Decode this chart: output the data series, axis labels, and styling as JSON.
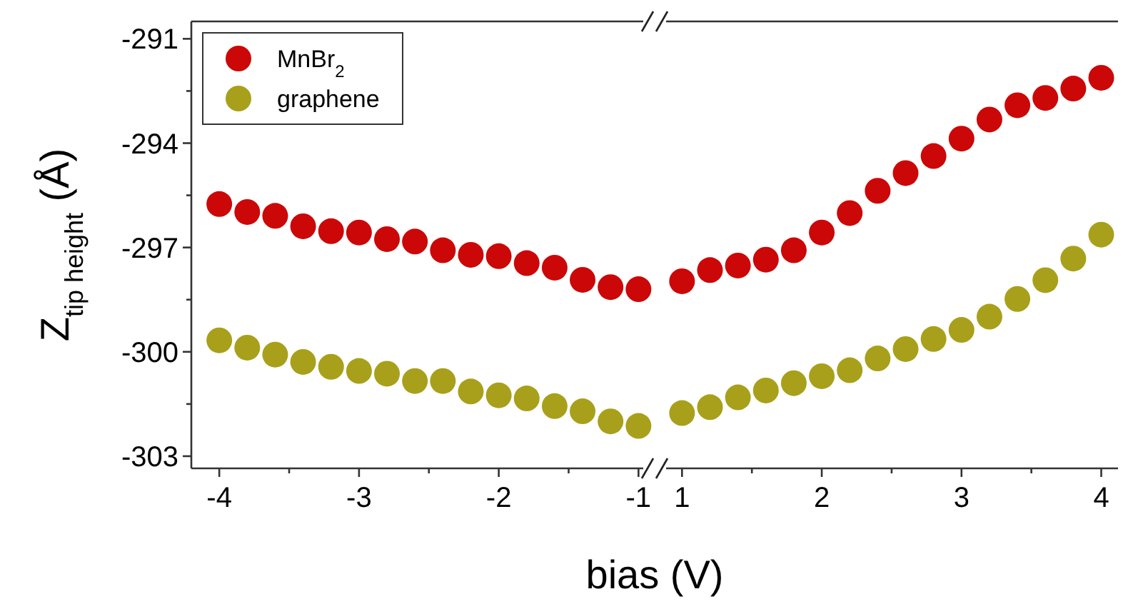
{
  "chart_data": [
    {
      "type": "scatter",
      "xlabel": "bias (V)",
      "ylabel": "Z$_{tip height}$ (Å)",
      "legend": "top left",
      "marker": "circle",
      "xlim": [
        -4.2,
        -0.92
      ],
      "xticks": [
        -4,
        {
          "value": -3.5,
          "label": null
        },
        -3,
        {
          "value": -2.5,
          "label": null
        },
        -2,
        {
          "value": -1.5,
          "label": null
        },
        -1
      ],
      "ylim": [
        -303.35,
        -290.5
      ],
      "yticks": [
        -291,
        {
          "value": -292.5,
          "label": null
        },
        -294,
        {
          "value": -295.5,
          "label": null
        },
        -297,
        {
          "value": -298.5,
          "label": null
        },
        -300,
        {
          "value": -301.5,
          "label": null
        },
        -303
      ],
      "x": [
        -4,
        -3.8,
        -3.6,
        -3.4,
        -3.2,
        -3,
        -2.8,
        -2.6,
        -2.4,
        -2.2,
        -2,
        -1.8,
        -1.6,
        -1.4,
        -1.2,
        -1
      ],
      "series": [
        {
          "name": "MnBr$_{2}$",
          "color": "#cc0707",
          "values": [
            -295.75,
            -295.98,
            -296.09,
            -296.39,
            -296.53,
            -296.57,
            -296.76,
            -296.83,
            -297.08,
            -297.21,
            -297.25,
            -297.45,
            -297.58,
            -297.93,
            -298.14,
            -298.2
          ]
        },
        {
          "name": "graphene",
          "color": "#a8a01a",
          "values": [
            -299.67,
            -299.88,
            -300.08,
            -300.29,
            -300.43,
            -300.55,
            -300.63,
            -300.84,
            -300.84,
            -301.14,
            -301.25,
            -301.34,
            -301.56,
            -301.71,
            -302.0,
            -302.13
          ]
        }
      ]
    },
    {
      "type": "scatter",
      "tick_labels": "x",
      "marker": "circle",
      "xlim": [
        0.84,
        4.12
      ],
      "xticks": [
        1,
        {
          "value": 1.5,
          "label": null
        },
        2,
        {
          "value": 2.5,
          "label": null
        },
        3,
        {
          "value": 3.5,
          "label": null
        },
        4
      ],
      "ylim": [
        -303.35,
        -290.5
      ],
      "x": [
        1,
        1.2,
        1.4,
        1.6,
        1.8,
        2,
        2.2,
        2.4,
        2.6,
        2.8,
        3,
        3.2,
        3.4,
        3.6,
        3.8,
        4
      ],
      "series": [
        {
          "color": "#cc0707",
          "values": [
            -297.97,
            -297.65,
            -297.52,
            -297.35,
            -297.08,
            -296.57,
            -296.01,
            -295.37,
            -294.86,
            -294.37,
            -293.87,
            -293.32,
            -292.91,
            -292.7,
            -292.43,
            -292.12
          ]
        },
        {
          "color": "#a8a01a",
          "values": [
            -301.76,
            -301.59,
            -301.31,
            -301.11,
            -300.9,
            -300.7,
            -300.53,
            -300.19,
            -299.92,
            -299.63,
            -299.37,
            -298.99,
            -298.48,
            -297.94,
            -297.32,
            -296.63
          ]
        }
      ]
    }
  ]
}
